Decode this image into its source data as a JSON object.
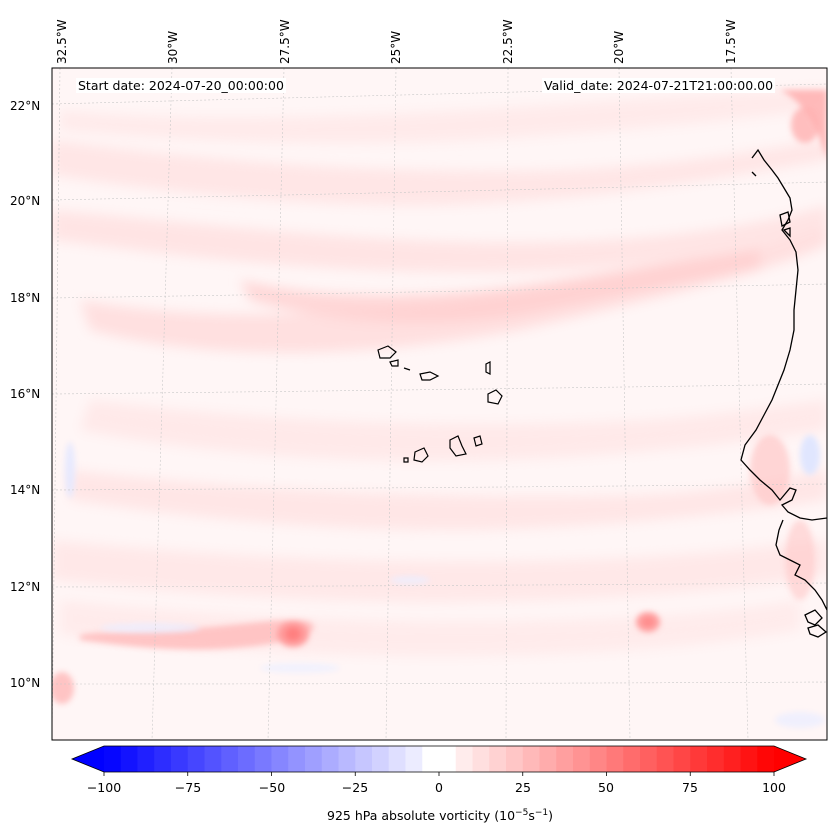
{
  "map": {
    "start_date": "Start date: 2024-07-20_00:00:00",
    "valid_date": "Valid_date: 2024-07-21T21:00:00.00",
    "lon_ticks": [
      "32.5°W",
      "30°W",
      "27.5°W",
      "25°W",
      "22.5°W",
      "20°W",
      "17.5°W"
    ],
    "lat_ticks": [
      "22°N",
      "20°N",
      "18°N",
      "16°N",
      "14°N",
      "12°N",
      "10°N"
    ],
    "field": "925 hPa absolute vorticity",
    "colorbar": {
      "label_prefix": "925 hPa absolute vorticity (10",
      "label_exp1": "−5",
      "label_mid": "s",
      "label_exp2": "−1",
      "label_suffix": ")",
      "min": -100,
      "max": 100,
      "ticks": [
        "−100",
        "−75",
        "−50",
        "−25",
        "0",
        "25",
        "50",
        "75",
        "100"
      ],
      "low_color": "#0000ff",
      "high_color": "#ff0000"
    },
    "colors": {
      "background_tint": "#fff5f5",
      "light_red": "#ffdede",
      "medium_red": "#ffc4c4",
      "coastline": "#000000",
      "gridline": "#c8c8c8"
    }
  }
}
